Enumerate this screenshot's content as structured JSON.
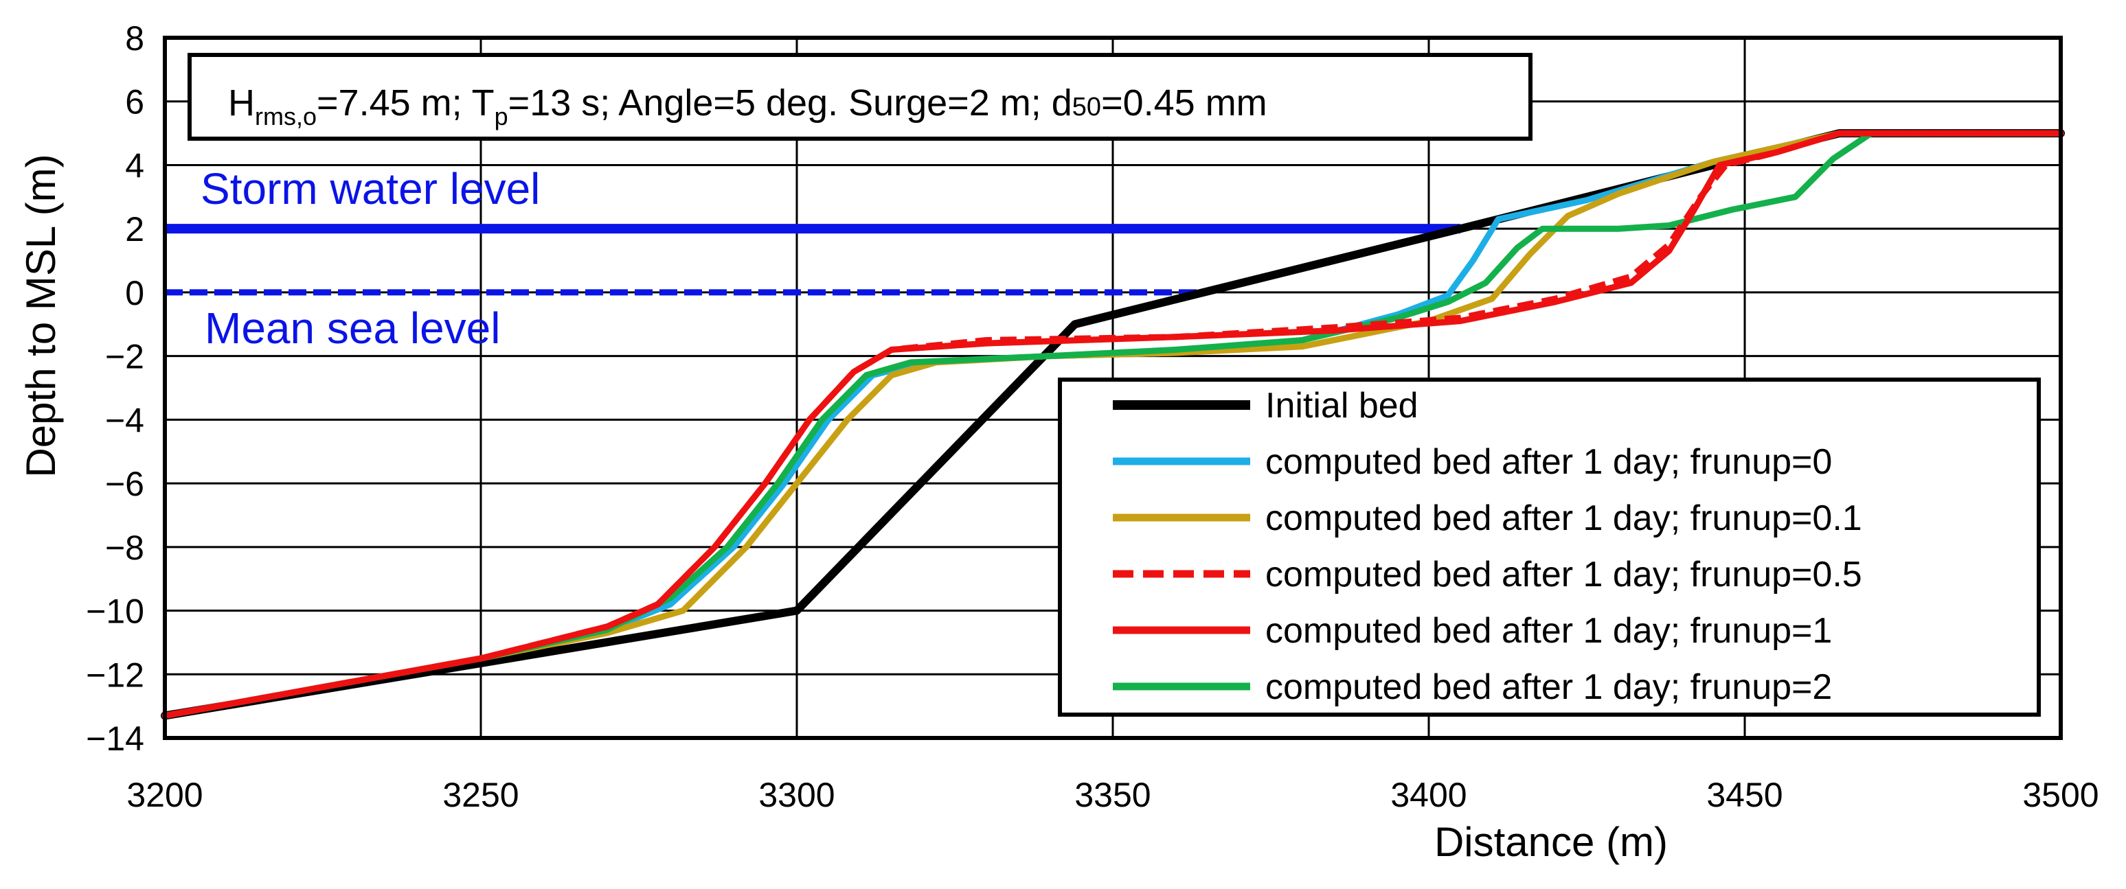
{
  "chart_data": {
    "type": "line",
    "title": "",
    "xlabel": "Distance (m)",
    "ylabel": "Depth to MSL (m)",
    "xlim": [
      3200,
      3500
    ],
    "ylim": [
      -14,
      8
    ],
    "xticks": [
      3200,
      3250,
      3300,
      3350,
      3400,
      3450,
      3500
    ],
    "yticks": [
      -14,
      -12,
      -10,
      -8,
      -6,
      -4,
      -2,
      0,
      2,
      4,
      6,
      8
    ],
    "x_tick_labels": [
      "3200",
      "3250",
      "3300",
      "3350",
      "3400",
      "3450",
      "3500"
    ],
    "y_tick_labels": [
      "−14",
      "−12",
      "−10",
      "−8",
      "−6",
      "−4",
      "−2",
      "0",
      "2",
      "4",
      "6",
      "8"
    ],
    "grid": true,
    "legend_position": "bottom-right",
    "info_box": {
      "segments": [
        {
          "text": "H",
          "style": "normal"
        },
        {
          "text": "rms,o",
          "style": "sub"
        },
        {
          "text": "=7.45 m; T",
          "style": "normal"
        },
        {
          "text": "p",
          "style": "sub"
        },
        {
          "text": "=13 s; Angle=5 deg.  Surge=2 m; d",
          "style": "normal"
        },
        {
          "text": "50",
          "style": "small"
        },
        {
          "text": "=0.45 mm",
          "style": "normal"
        }
      ]
    },
    "reference_lines": [
      {
        "name": "Storm water level",
        "y": 2,
        "x_range": [
          3200,
          3405
        ],
        "color": "#0a14e6",
        "dashed": false,
        "label": "Storm water level"
      },
      {
        "name": "Mean sea level",
        "y": 0,
        "x_range": [
          3200,
          3365
        ],
        "color": "#0a14e6",
        "dashed": true,
        "label": "Mean sea level"
      }
    ],
    "series": [
      {
        "name": "Initial bed",
        "color": "#000000",
        "dashed": false,
        "points": [
          [
            3200,
            -13.3
          ],
          [
            3300,
            -10
          ],
          [
            3344,
            -1
          ],
          [
            3405,
            2
          ],
          [
            3465,
            5
          ],
          [
            3500,
            5
          ]
        ]
      },
      {
        "name": "computed bed after 1 day; frunup=0",
        "color": "#1eaee6",
        "dashed": false,
        "points": [
          [
            3200,
            -13.3
          ],
          [
            3250,
            -11.5
          ],
          [
            3270,
            -10.6
          ],
          [
            3280,
            -9.8
          ],
          [
            3290,
            -8
          ],
          [
            3298,
            -6
          ],
          [
            3305,
            -4
          ],
          [
            3312,
            -2.6
          ],
          [
            3320,
            -2.2
          ],
          [
            3340,
            -2
          ],
          [
            3360,
            -1.9
          ],
          [
            3380,
            -1.5
          ],
          [
            3395,
            -0.7
          ],
          [
            3403,
            -0.1
          ],
          [
            3407,
            1.0
          ],
          [
            3411,
            2.3
          ],
          [
            3425,
            2.9
          ],
          [
            3445,
            4.1
          ],
          [
            3465,
            5
          ],
          [
            3500,
            5
          ]
        ]
      },
      {
        "name": "computed bed after 1 day; frunup=0.1",
        "color": "#c8a014",
        "dashed": false,
        "points": [
          [
            3200,
            -13.3
          ],
          [
            3250,
            -11.5
          ],
          [
            3270,
            -10.7
          ],
          [
            3282,
            -10
          ],
          [
            3292,
            -8
          ],
          [
            3300,
            -6
          ],
          [
            3308,
            -4
          ],
          [
            3315,
            -2.6
          ],
          [
            3322,
            -2.2
          ],
          [
            3340,
            -2
          ],
          [
            3360,
            -1.9
          ],
          [
            3380,
            -1.7
          ],
          [
            3400,
            -0.9
          ],
          [
            3410,
            -0.2
          ],
          [
            3416,
            1.2
          ],
          [
            3422,
            2.4
          ],
          [
            3430,
            3.1
          ],
          [
            3445,
            4.1
          ],
          [
            3465,
            5
          ],
          [
            3500,
            5
          ]
        ]
      },
      {
        "name": "computed bed after 1 day; frunup=0.5",
        "color": "#ee1111",
        "dashed": true,
        "points": [
          [
            3200,
            -13.3
          ],
          [
            3250,
            -11.5
          ],
          [
            3270,
            -10.5
          ],
          [
            3278,
            -9.8
          ],
          [
            3287,
            -8
          ],
          [
            3295,
            -6
          ],
          [
            3302,
            -4
          ],
          [
            3309,
            -2.5
          ],
          [
            3315,
            -1.8
          ],
          [
            3330,
            -1.5
          ],
          [
            3360,
            -1.4
          ],
          [
            3385,
            -1.1
          ],
          [
            3405,
            -0.8
          ],
          [
            3420,
            -0.2
          ],
          [
            3432,
            0.5
          ],
          [
            3438,
            1.5
          ],
          [
            3443,
            3.0
          ],
          [
            3447,
            4.0
          ],
          [
            3455,
            4.4
          ],
          [
            3465,
            5
          ],
          [
            3500,
            5
          ]
        ]
      },
      {
        "name": "computed bed after 1 day; frunup=1",
        "color": "#ee1111",
        "dashed": false,
        "points": [
          [
            3200,
            -13.3
          ],
          [
            3250,
            -11.5
          ],
          [
            3270,
            -10.5
          ],
          [
            3278,
            -9.8
          ],
          [
            3287,
            -8
          ],
          [
            3295,
            -6
          ],
          [
            3302,
            -4
          ],
          [
            3309,
            -2.5
          ],
          [
            3315,
            -1.8
          ],
          [
            3330,
            -1.6
          ],
          [
            3360,
            -1.4
          ],
          [
            3385,
            -1.2
          ],
          [
            3405,
            -0.9
          ],
          [
            3420,
            -0.3
          ],
          [
            3432,
            0.3
          ],
          [
            3438,
            1.3
          ],
          [
            3442,
            2.6
          ],
          [
            3446,
            4.0
          ],
          [
            3455,
            4.4
          ],
          [
            3465,
            5
          ],
          [
            3500,
            5
          ]
        ]
      },
      {
        "name": "computed bed after 1 day; frunup=2",
        "color": "#14b04b",
        "dashed": false,
        "points": [
          [
            3200,
            -13.3
          ],
          [
            3250,
            -11.5
          ],
          [
            3270,
            -10.6
          ],
          [
            3280,
            -9.6
          ],
          [
            3289,
            -8
          ],
          [
            3297,
            -6
          ],
          [
            3304,
            -4
          ],
          [
            3311,
            -2.6
          ],
          [
            3318,
            -2.2
          ],
          [
            3340,
            -2
          ],
          [
            3360,
            -1.8
          ],
          [
            3380,
            -1.5
          ],
          [
            3395,
            -0.8
          ],
          [
            3403,
            -0.3
          ],
          [
            3409,
            0.3
          ],
          [
            3414,
            1.4
          ],
          [
            3418,
            2.0
          ],
          [
            3430,
            2.0
          ],
          [
            3438,
            2.1
          ],
          [
            3448,
            2.6
          ],
          [
            3458,
            3.0
          ],
          [
            3464,
            4.2
          ],
          [
            3470,
            5
          ],
          [
            3500,
            5
          ]
        ]
      }
    ]
  }
}
